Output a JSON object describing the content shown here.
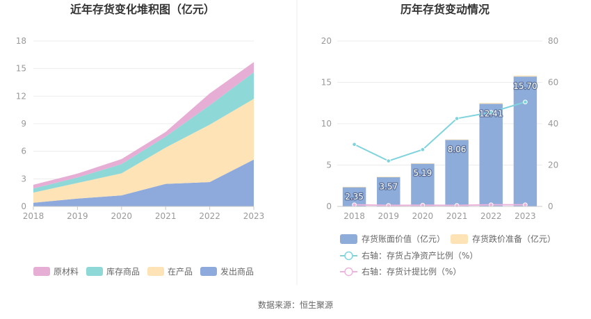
{
  "source": "数据来源：恒生聚源",
  "chart_data": [
    {
      "type": "area",
      "title": "近年存货变化堆积图（亿元）",
      "x": [
        "2018",
        "2019",
        "2020",
        "2021",
        "2022",
        "2023"
      ],
      "ylim": [
        0,
        18
      ],
      "yticks": [
        "0",
        "3",
        "6",
        "9",
        "12",
        "15",
        "18"
      ],
      "stacked": true,
      "legend_position": "bottom",
      "series": [
        {
          "name": "发出商品",
          "color": "#8ea9db",
          "values": [
            0.4,
            0.85,
            1.2,
            2.45,
            2.65,
            5.1
          ]
        },
        {
          "name": "在产品",
          "color": "#fde3b5",
          "values": [
            1.1,
            1.7,
            2.4,
            3.95,
            6.25,
            6.6
          ]
        },
        {
          "name": "库存商品",
          "color": "#8fd8d8",
          "values": [
            0.45,
            0.6,
            1.0,
            1.2,
            2.1,
            2.9
          ]
        },
        {
          "name": "原材料",
          "color": "#e6aed4",
          "values": [
            0.4,
            0.42,
            0.55,
            0.5,
            1.3,
            1.1
          ]
        }
      ],
      "legend_order": [
        "原材料",
        "库存商品",
        "在产品",
        "发出商品"
      ]
    },
    {
      "type": "bar",
      "title": "历年存货变动情况",
      "categories": [
        "2018",
        "2019",
        "2020",
        "2021",
        "2022",
        "2023"
      ],
      "ylim": [
        0,
        20
      ],
      "yticks": [
        "0",
        "5",
        "10",
        "15",
        "20"
      ],
      "y2lim": [
        0,
        80
      ],
      "y2ticks": [
        "0",
        "20",
        "40",
        "60",
        "80"
      ],
      "legend_position": "bottom",
      "series": [
        {
          "name": "存货账面价值（亿元）",
          "color": "#8eacd9",
          "values": [
            2.35,
            3.57,
            5.19,
            8.06,
            12.41,
            15.7
          ],
          "labels": [
            "2.35",
            "3.57",
            "5.19",
            "8.06",
            "12.41",
            "15.70"
          ]
        },
        {
          "name": "存货跌价准备（亿元）",
          "color": "#fde3b5",
          "values": [
            0.02,
            0.02,
            0.03,
            0.04,
            0.1,
            0.12
          ]
        },
        {
          "name": "右轴：存货占净资产比例（%）",
          "color": "#7fd3dc",
          "axis": "right",
          "values": [
            30,
            22,
            27.5,
            42.5,
            45.5,
            50.5
          ]
        },
        {
          "name": "右轴：存货计提比例（%）",
          "color": "#ecb4dc",
          "axis": "right",
          "values": [
            0.8,
            0.5,
            0.6,
            0.5,
            0.8,
            0.8
          ]
        }
      ]
    }
  ]
}
